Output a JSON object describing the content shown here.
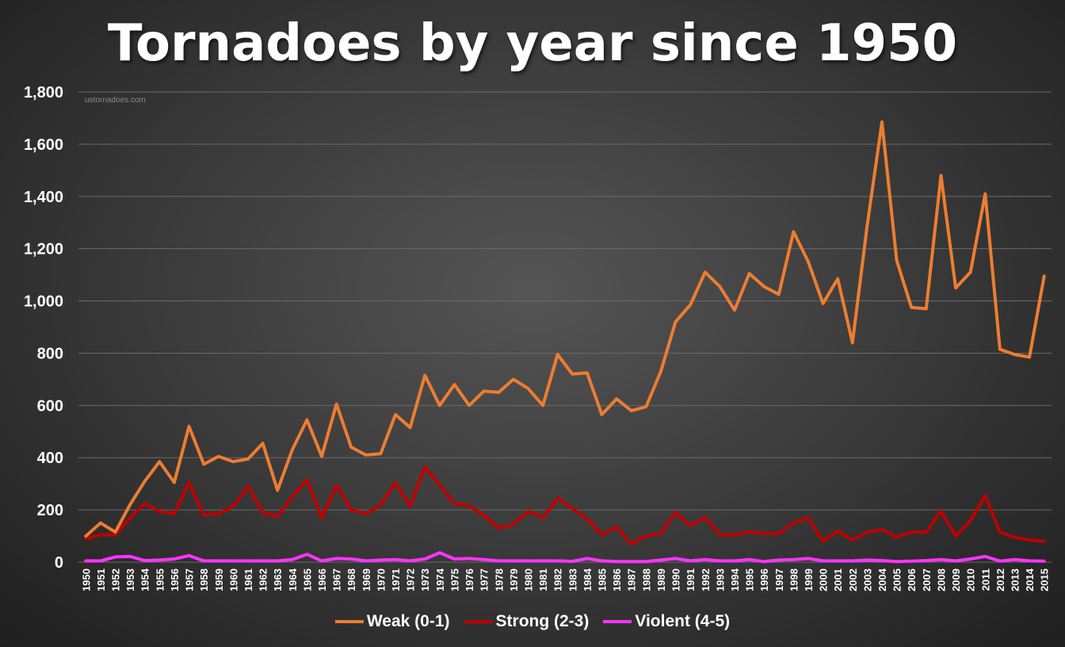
{
  "colors": {
    "weak": "#ed7d31",
    "strong": "#c00000",
    "violent": "#ff33ff",
    "grid": "#6a6a6a",
    "text": "#ffffff"
  },
  "chart_data": {
    "type": "line",
    "title": "Tornadoes by year since 1950",
    "watermark": "ustornadoes.com",
    "ylim": [
      0,
      1800
    ],
    "yticks": [
      "0",
      "200",
      "400",
      "600",
      "800",
      "1,000",
      "1,200",
      "1,400",
      "1,600",
      "1,800"
    ],
    "ytick_values": [
      0,
      200,
      400,
      600,
      800,
      1000,
      1200,
      1400,
      1600,
      1800
    ],
    "grid": true,
    "legend": "bottom",
    "x": [
      "1950",
      "1951",
      "1952",
      "1953",
      "1954",
      "1955",
      "1956",
      "1957",
      "1958",
      "1959",
      "1960",
      "1961",
      "1962",
      "1963",
      "1964",
      "1965",
      "1966",
      "1967",
      "1968",
      "1969",
      "1970",
      "1971",
      "1972",
      "1973",
      "1974",
      "1975",
      "1976",
      "1977",
      "1978",
      "1979",
      "1980",
      "1981",
      "1982",
      "1983",
      "1984",
      "1985",
      "1986",
      "1987",
      "1988",
      "1989",
      "1990",
      "1991",
      "1992",
      "1993",
      "1994",
      "1995",
      "1996",
      "1997",
      "1998",
      "1999",
      "2000",
      "2001",
      "2002",
      "2003",
      "2004",
      "2005",
      "2006",
      "2007",
      "2008",
      "2009",
      "2010",
      "2011",
      "2012",
      "2013",
      "2014",
      "2015"
    ],
    "series": [
      {
        "name": "Weak (0-1)",
        "color_key": "weak",
        "values": [
          100,
          150,
          115,
          220,
          310,
          385,
          305,
          520,
          375,
          405,
          385,
          395,
          455,
          275,
          430,
          545,
          405,
          605,
          440,
          410,
          415,
          565,
          515,
          715,
          600,
          680,
          600,
          655,
          650,
          700,
          665,
          600,
          795,
          720,
          725,
          565,
          625,
          580,
          595,
          730,
          920,
          985,
          1110,
          1055,
          965,
          1105,
          1055,
          1025,
          1265,
          1150,
          990,
          1085,
          840,
          1290,
          1685,
          1155,
          975,
          970,
          1480,
          1050,
          1110,
          1410,
          815,
          795,
          785,
          1095
        ]
      },
      {
        "name": "Strong (2-3)",
        "color_key": "strong",
        "values": [
          90,
          105,
          105,
          170,
          225,
          195,
          185,
          305,
          180,
          185,
          215,
          290,
          190,
          175,
          250,
          315,
          170,
          295,
          200,
          185,
          220,
          305,
          215,
          365,
          295,
          225,
          215,
          180,
          130,
          145,
          195,
          170,
          245,
          205,
          165,
          105,
          135,
          70,
          100,
          110,
          190,
          140,
          170,
          105,
          105,
          115,
          110,
          110,
          150,
          170,
          80,
          120,
          85,
          115,
          125,
          95,
          115,
          115,
          195,
          100,
          160,
          255,
          115,
          95,
          85,
          80
        ]
      },
      {
        "name": "Violent (4-5)",
        "color_key": "violent",
        "values": [
          5,
          5,
          20,
          22,
          6,
          8,
          12,
          25,
          5,
          5,
          5,
          5,
          5,
          5,
          10,
          30,
          5,
          14,
          12,
          5,
          8,
          10,
          5,
          12,
          36,
          12,
          14,
          10,
          5,
          5,
          5,
          5,
          5,
          3,
          14,
          5,
          2,
          2,
          2,
          8,
          14,
          5,
          10,
          5,
          5,
          10,
          2,
          8,
          10,
          14,
          5,
          5,
          5,
          8,
          6,
          2,
          4,
          6,
          10,
          5,
          12,
          22,
          4,
          10,
          5,
          4
        ]
      }
    ]
  }
}
